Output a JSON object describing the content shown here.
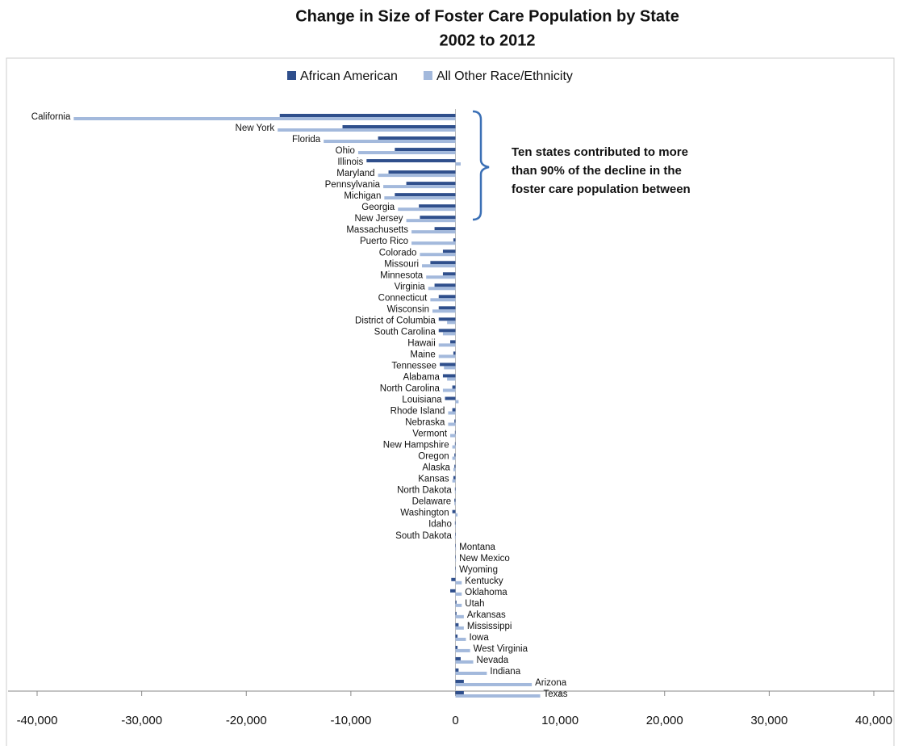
{
  "chart_data": {
    "type": "bar",
    "orientation": "horizontal",
    "title": "Change in Size of Foster Care Population by State",
    "subtitle": "2002 to 2012",
    "annotation": [
      "Ten states contributed to more",
      "than 90% of the decline in the",
      "foster care population between"
    ],
    "categories": [
      "California",
      "New York",
      "Florida",
      "Ohio",
      "Illinois",
      "Maryland",
      "Pennsylvania",
      "Michigan",
      "Georgia",
      "New Jersey",
      "Massachusetts",
      "Puerto Rico",
      "Colorado",
      "Missouri",
      "Minnesota",
      "Virginia",
      "Connecticut",
      "Wisconsin",
      "District of Columbia",
      "South Carolina",
      "Hawaii",
      "Maine",
      "Tennessee",
      "Alabama",
      "North Carolina",
      "Louisiana",
      "Rhode Island",
      "Nebraska",
      "Vermont",
      "New Hampshire",
      "Oregon",
      "Alaska",
      "Kansas",
      "North Dakota",
      "Delaware",
      "Washington",
      "Idaho",
      "South Dakota",
      "Montana",
      "New Mexico",
      "Wyoming",
      "Kentucky",
      "Oklahoma",
      "Utah",
      "Arkansas",
      "Mississippi",
      "Iowa",
      "West Virginia",
      "Nevada",
      "Indiana",
      "Arizona",
      "Texas"
    ],
    "series": [
      {
        "name": "African American",
        "color": "#2f4f8c",
        "values": [
          -16800,
          -10800,
          -7400,
          -5800,
          -8500,
          -6400,
          -4700,
          -5800,
          -3500,
          -3400,
          -2000,
          -200,
          -1200,
          -2400,
          -1200,
          -2000,
          -1600,
          -1600,
          -1600,
          -1600,
          -500,
          -200,
          -1500,
          -1200,
          -300,
          -1000,
          -300,
          -100,
          -50,
          -50,
          -100,
          -100,
          -200,
          -50,
          -100,
          -300,
          -50,
          -20,
          0,
          0,
          20,
          -400,
          -500,
          100,
          100,
          300,
          200,
          200,
          500,
          300,
          800,
          800
        ]
      },
      {
        "name": "All Other Race/Ethnicity",
        "color": "#a3b9dc",
        "values": [
          -36500,
          -17000,
          -12600,
          -9300,
          500,
          -7400,
          -6900,
          -6800,
          -5500,
          -4700,
          -4200,
          -4200,
          -3400,
          -3200,
          -2800,
          -2600,
          -2400,
          -2200,
          -800,
          -1200,
          -1600,
          -1600,
          -1100,
          -800,
          -1200,
          300,
          -700,
          -700,
          -500,
          -300,
          -300,
          -200,
          -300,
          -50,
          -100,
          200,
          0,
          -50,
          50,
          50,
          50,
          600,
          600,
          600,
          800,
          800,
          1000,
          1400,
          1700,
          3000,
          7300,
          8100
        ]
      }
    ],
    "xlim": [
      -40000,
      40000
    ],
    "xticks": [
      {
        "value": -40000,
        "label": "-40,000"
      },
      {
        "value": -30000,
        "label": "-30,000"
      },
      {
        "value": -20000,
        "label": "-20,000"
      },
      {
        "value": -10000,
        "label": "-10,000"
      },
      0,
      {
        "value": 10000,
        "label": "10,000"
      },
      {
        "value": 20000,
        "label": "20,000"
      },
      {
        "value": 30000,
        "label": "30,000"
      },
      {
        "value": 40000,
        "label": "40,000"
      }
    ],
    "legend": "top"
  }
}
